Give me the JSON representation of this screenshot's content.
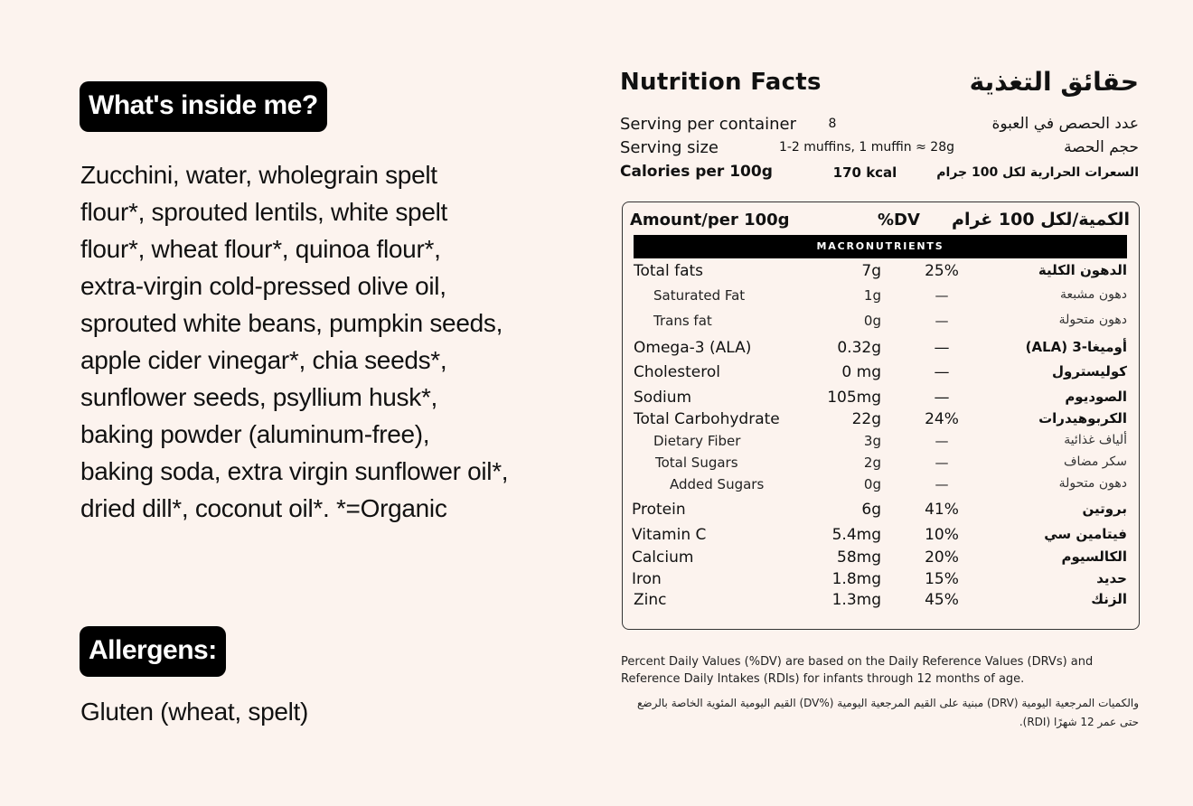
{
  "left": {
    "ingredients_badge": "What's inside me?",
    "ingredients_lines": [
      "Zucchini, water, wholegrain spelt",
      "flour*, sprouted lentils, white spelt",
      "flour*, wheat flour*, quinoa flour*,",
      "extra-virgin cold-pressed olive oil,",
      "sprouted white beans, pumpkin seeds,",
      "apple cider vinegar*, chia seeds*,",
      "sunflower seeds, psyllium husk*,",
      "baking powder (aluminum-free),",
      "baking soda, extra virgin sunflower oil*,",
      "dried dill*, coconut oil*. *=Organic"
    ],
    "allergens_badge": "Allergens:",
    "allergens_text": "Gluten (wheat, spelt)"
  },
  "nutrition": {
    "title_en": "Nutrition Facts",
    "title_ar": "حقائق التغذية",
    "serving": [
      {
        "label": "Serving per container",
        "value": "8",
        "label_ar": "عدد الحصص في العبوة"
      },
      {
        "label": "Serving size",
        "value": "1-2 muffins, 1 muffin ≈ 28g",
        "label_ar": "حجم الحصة"
      },
      {
        "label": "Calories per 100g",
        "value": "170 kcal",
        "label_ar": "السعرات الحرارية لكل 100 جرام"
      }
    ],
    "table_header": {
      "amount": "Amount/per 100g",
      "dv": "%DV",
      "amount_ar": "الكمية/لكل 100 غرام"
    },
    "section_label": "MACRONUTRIENTS",
    "rows": [
      {
        "name": "Total fats",
        "amount": "7g",
        "dv": "25%",
        "name_ar": "الدهون الكلية"
      },
      {
        "name": "Saturated Fat",
        "amount": "1g",
        "dv": "—",
        "name_ar": "دهون مشبعة"
      },
      {
        "name": "Trans fat",
        "amount": "0g",
        "dv": "—",
        "name_ar": "دهون متحولة"
      },
      {
        "name": "Omega-3 (ALA)",
        "amount": "0.32g",
        "dv": "—",
        "name_ar": "أوميغا-3 (ALA)"
      },
      {
        "name": "Cholesterol",
        "amount": "0 mg",
        "dv": "—",
        "name_ar": "كوليسترول"
      },
      {
        "name": "Sodium",
        "amount": "105mg",
        "dv": "—",
        "name_ar": "الصوديوم"
      },
      {
        "name": "Total Carbohydrate",
        "amount": "22g",
        "dv": "24%",
        "name_ar": "الكربوهيدرات"
      },
      {
        "name": "Dietary Fiber",
        "amount": "3g",
        "dv": "—",
        "name_ar": "ألياف غذائية"
      },
      {
        "name": "Total Sugars",
        "amount": "2g",
        "dv": "—",
        "name_ar": "سكر مضاف"
      },
      {
        "name": "Added Sugars",
        "amount": "0g",
        "dv": "—",
        "name_ar": "دهون متحولة"
      },
      {
        "name": "Protein",
        "amount": "6g",
        "dv": "41%",
        "name_ar": "بروتين"
      },
      {
        "name": "Vitamin C",
        "amount": "5.4mg",
        "dv": "10%",
        "name_ar": "فيتامين سي"
      },
      {
        "name": "Calcium",
        "amount": "58mg",
        "dv": "20%",
        "name_ar": "الكالسيوم"
      },
      {
        "name": "Iron",
        "amount": "1.8mg",
        "dv": "15%",
        "name_ar": "حديد"
      },
      {
        "name": "Zinc",
        "amount": "1.3mg",
        "dv": "45%",
        "name_ar": "الزنك"
      }
    ],
    "footnote_en": "Percent Daily Values (%DV) are based on the Daily Reference Values (DRVs) and Reference Daily Intakes (RDIs) for infants through 12 months of age.",
    "footnote_ar": "والكميات المرجعية اليومية (DRV) مبنية على القيم المرجعية اليومية (%DV) القيم اليومية المئوية الخاصة بالرضع حتى عمر 12 شهرًا (RDI)."
  }
}
